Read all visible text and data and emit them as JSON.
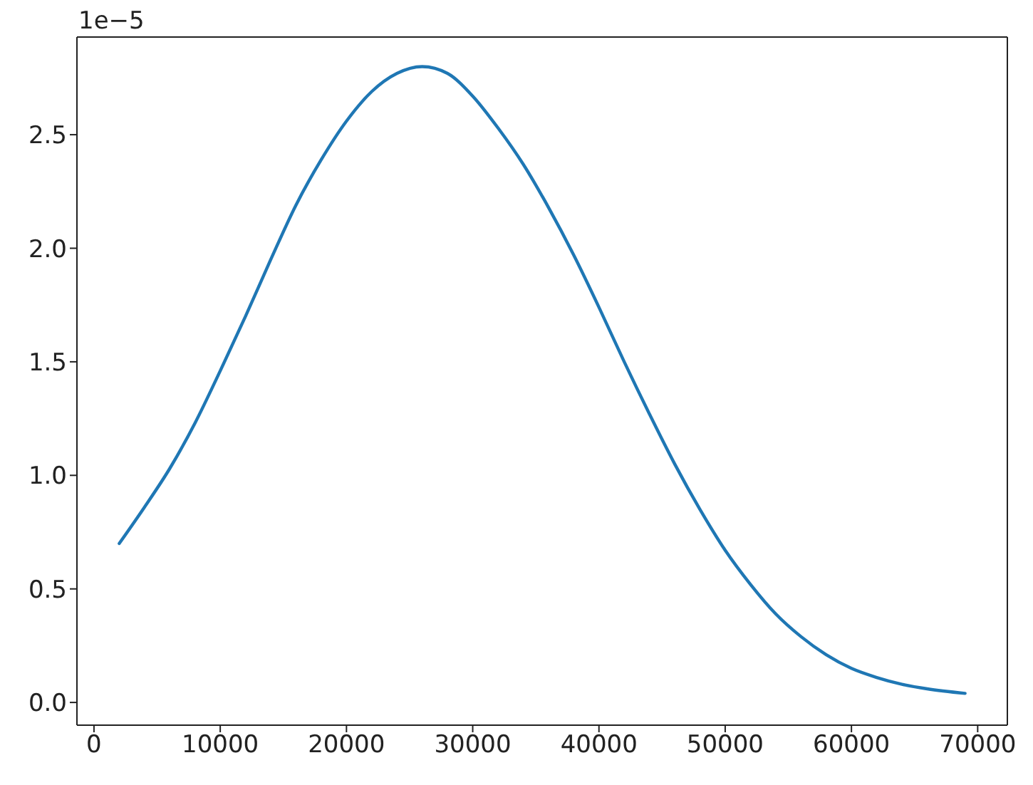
{
  "chart_data": {
    "type": "line",
    "x": [
      2000,
      4000,
      6000,
      8000,
      10000,
      12000,
      14000,
      16000,
      18000,
      20000,
      22000,
      24000,
      26000,
      28000,
      30000,
      32000,
      34000,
      36000,
      38000,
      40000,
      42000,
      44000,
      46000,
      48000,
      50000,
      52000,
      54000,
      56000,
      58000,
      60000,
      62000,
      64000,
      66000,
      69000
    ],
    "values": [
      0.7,
      0.86,
      1.03,
      1.23,
      1.46,
      1.7,
      1.95,
      2.19,
      2.39,
      2.56,
      2.69,
      2.77,
      2.8,
      2.77,
      2.67,
      2.53,
      2.37,
      2.18,
      1.97,
      1.74,
      1.5,
      1.27,
      1.05,
      0.85,
      0.67,
      0.52,
      0.39,
      0.29,
      0.21,
      0.15,
      0.11,
      0.08,
      0.06,
      0.04
    ],
    "color": "#1f77b4",
    "xlim": [
      -1350,
      72350
    ],
    "xticks": [
      0,
      10000,
      20000,
      30000,
      40000,
      50000,
      60000,
      70000
    ],
    "ylim": [
      -0.1,
      2.93
    ],
    "yticks": [
      {
        "value": 0,
        "label": "0.0"
      },
      0.5,
      {
        "value": 1,
        "label": "1.0"
      },
      1.5,
      {
        "value": 2,
        "label": "2.0"
      },
      2.5
    ],
    "annotations": [
      "1e−5"
    ]
  }
}
